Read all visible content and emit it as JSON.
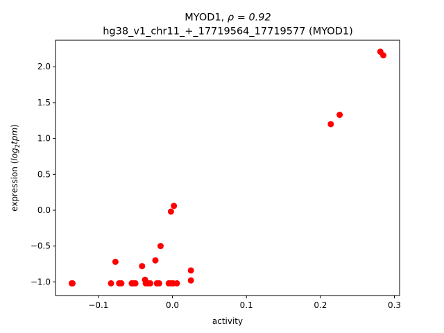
{
  "chart_data": {
    "type": "scatter",
    "title_line1_prefix": "MYOD1, ",
    "title_line1_rho": "ρ = 0.92",
    "title_line2": "hg38_v1_chr11_+_17719564_17719577 (MYOD1)",
    "xlabel": "activity",
    "ylabel_prefix": "expression (",
    "ylabel_log": "log",
    "ylabel_sub": "2",
    "ylabel_tpm": "tpm",
    "ylabel_suffix": ")",
    "xlim": [
      -0.158,
      0.307
    ],
    "ylim": [
      -1.19,
      2.37
    ],
    "xticks": [
      {
        "value": -0.1,
        "label": "−0.1"
      },
      {
        "value": 0.0,
        "label": "0.0"
      },
      {
        "value": 0.1,
        "label": "0.1"
      },
      {
        "value": 0.2,
        "label": "0.2"
      },
      {
        "value": 0.3,
        "label": "0.3"
      }
    ],
    "yticks": [
      {
        "value": -1.0,
        "label": "−1.0"
      },
      {
        "value": -0.5,
        "label": "−0.5"
      },
      {
        "value": 0.0,
        "label": "0.0"
      },
      {
        "value": 0.5,
        "label": "0.5"
      },
      {
        "value": 1.0,
        "label": "1.0"
      },
      {
        "value": 1.5,
        "label": "1.5"
      },
      {
        "value": 2.0,
        "label": "2.0"
      }
    ],
    "grid": false,
    "marker_color": "#ff0000",
    "points": [
      {
        "x": -0.136,
        "y": -1.02
      },
      {
        "x": -0.135,
        "y": -1.02
      },
      {
        "x": -0.083,
        "y": -1.02
      },
      {
        "x": -0.072,
        "y": -1.02
      },
      {
        "x": -0.069,
        "y": -1.02
      },
      {
        "x": -0.055,
        "y": -1.02
      },
      {
        "x": -0.053,
        "y": -1.02
      },
      {
        "x": -0.05,
        "y": -1.02
      },
      {
        "x": -0.077,
        "y": -0.72
      },
      {
        "x": -0.041,
        "y": -0.78
      },
      {
        "x": -0.037,
        "y": -0.97
      },
      {
        "x": -0.036,
        "y": -1.02
      },
      {
        "x": -0.033,
        "y": -1.02
      },
      {
        "x": -0.03,
        "y": -1.02
      },
      {
        "x": -0.023,
        "y": -0.7
      },
      {
        "x": -0.021,
        "y": -1.02
      },
      {
        "x": -0.018,
        "y": -1.02
      },
      {
        "x": -0.016,
        "y": -0.5
      },
      {
        "x": -0.005,
        "y": -1.02
      },
      {
        "x": -0.002,
        "y": -1.02
      },
      {
        "x": 0.001,
        "y": -1.02
      },
      {
        "x": 0.006,
        "y": -1.02
      },
      {
        "x": -0.002,
        "y": -0.02
      },
      {
        "x": 0.002,
        "y": 0.06
      },
      {
        "x": 0.025,
        "y": -0.84
      },
      {
        "x": 0.025,
        "y": -0.98
      },
      {
        "x": 0.214,
        "y": 1.2
      },
      {
        "x": 0.226,
        "y": 1.33
      },
      {
        "x": 0.281,
        "y": 2.21
      },
      {
        "x": 0.285,
        "y": 2.16
      }
    ]
  }
}
